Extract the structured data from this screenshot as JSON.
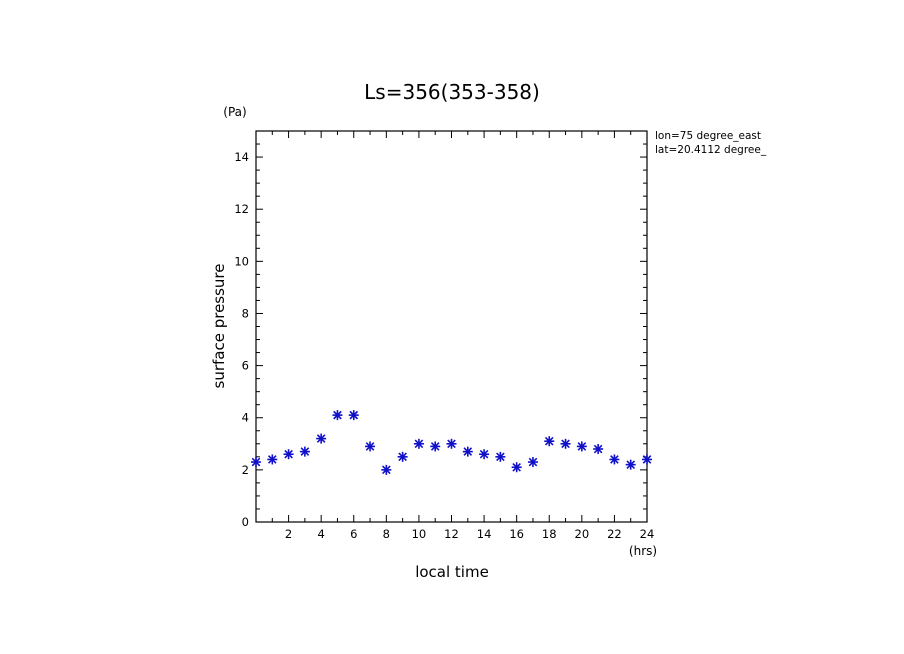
{
  "chart_data": {
    "type": "scatter",
    "title": "Ls=356(353-358)",
    "xlabel": "local time",
    "ylabel": "surface pressure",
    "x_unit": "(hrs)",
    "y_unit": "(Pa)",
    "xlim": [
      0,
      24
    ],
    "ylim": [
      0,
      15
    ],
    "x_ticks": [
      2,
      4,
      6,
      8,
      10,
      12,
      14,
      16,
      18,
      20,
      22,
      24
    ],
    "y_ticks": [
      0,
      2,
      4,
      6,
      8,
      10,
      12,
      14
    ],
    "grid": false,
    "annotations": [
      "lon=75 degree_east",
      "lat=20.4112 degree_"
    ],
    "marker_color": "#1010c8",
    "series": [
      {
        "x": [
          0,
          1,
          2,
          3,
          4,
          5,
          6,
          7,
          8,
          9,
          10,
          11,
          12,
          13,
          14,
          15,
          16,
          17,
          18,
          19,
          20,
          21,
          22,
          23,
          24
        ],
        "y": [
          2.3,
          2.4,
          2.6,
          2.7,
          3.2,
          4.1,
          4.1,
          2.9,
          2.0,
          2.5,
          3.0,
          2.9,
          3.0,
          2.7,
          2.6,
          2.5,
          2.1,
          2.3,
          3.1,
          3.0,
          2.9,
          2.8,
          2.4,
          2.2,
          2.4
        ]
      }
    ]
  }
}
